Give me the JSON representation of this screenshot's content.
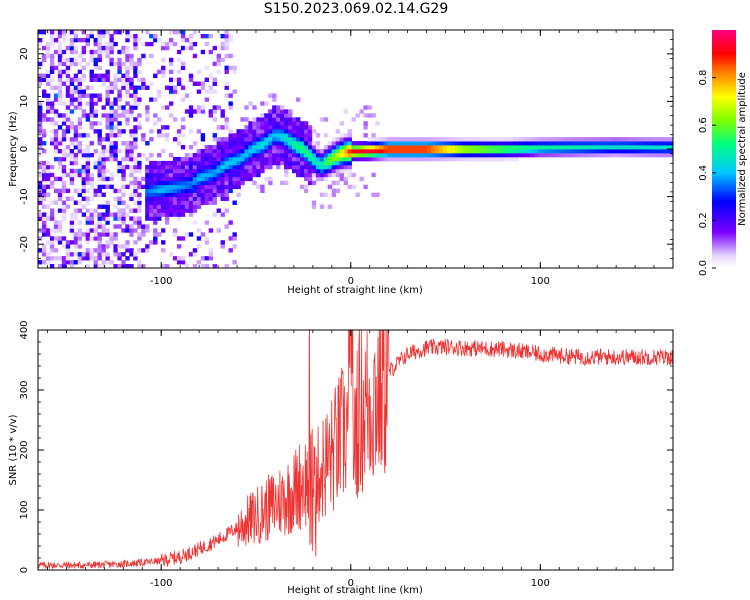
{
  "title": "S150.2023.069.02.14.G29",
  "colors": {
    "snr_line": "#ee3333",
    "axis": "#000000",
    "background": "#ffffff"
  },
  "chart_data": [
    {
      "type": "heatmap",
      "name": "spectrogram",
      "xlabel": "Height of straight line (km)",
      "ylabel": "Frequency (Hz)",
      "xlim": [
        -165,
        170
      ],
      "ylim": [
        -25,
        25
      ],
      "xticks": [
        -100,
        0,
        100
      ],
      "xtick_labels": [
        "-100",
        "0",
        "100"
      ],
      "yticks": [
        -20,
        -10,
        0,
        10,
        20
      ],
      "ytick_labels": [
        "-20",
        "-10",
        "0",
        "10",
        "20"
      ],
      "colorbar": {
        "label": "Normalized spectral amplitude",
        "range": [
          0,
          1
        ],
        "ticks": [
          0.0,
          0.2,
          0.4,
          0.6,
          0.8
        ],
        "tick_labels": [
          "0.0",
          "0.2",
          "0.4",
          "0.6",
          "0.8"
        ]
      },
      "ridge": {
        "x": [
          -108,
          -100,
          -92,
          -85,
          -80,
          -72,
          -65,
          -58,
          -52,
          -46,
          -40,
          -35,
          -30,
          -25,
          -20,
          -16,
          -12,
          -8,
          -4,
          0,
          10,
          20,
          40,
          60,
          80,
          100,
          120,
          140,
          160,
          170
        ],
        "y": [
          -9,
          -8.5,
          -8,
          -7.5,
          -6,
          -5,
          -3,
          -2,
          0,
          1,
          3,
          2.5,
          1,
          0,
          -2,
          -3.5,
          -2.5,
          -1.5,
          -0.8,
          -0.5,
          -0.3,
          0,
          0,
          0,
          0,
          0.3,
          0.4,
          0.5,
          0.4,
          0.4
        ],
        "amplitude": [
          0.35,
          0.4,
          0.38,
          0.35,
          0.4,
          0.38,
          0.42,
          0.4,
          0.42,
          0.45,
          0.4,
          0.45,
          0.5,
          0.55,
          0.5,
          0.45,
          0.6,
          0.65,
          0.75,
          0.9,
          0.95,
          0.95,
          0.95,
          0.7,
          0.6,
          0.5,
          0.48,
          0.45,
          0.45,
          0.45
        ]
      }
    },
    {
      "type": "line",
      "name": "snr",
      "xlabel": "Height of straight line (km)",
      "ylabel": "SNR (10 * v/v)",
      "xlim": [
        -165,
        170
      ],
      "ylim": [
        0,
        400
      ],
      "xticks": [
        -100,
        0,
        100
      ],
      "xtick_labels": [
        "-100",
        "0",
        "100"
      ],
      "yticks": [
        0,
        100,
        200,
        300,
        400
      ],
      "ytick_labels": [
        "0",
        "100",
        "200",
        "300",
        "400"
      ],
      "series": [
        {
          "name": "SNR",
          "x": [
            -165,
            -140,
            -120,
            -100,
            -90,
            -80,
            -70,
            -60,
            -50,
            -40,
            -30,
            -25,
            -20,
            -15,
            -10,
            -5,
            0,
            5,
            10,
            15,
            20,
            30,
            40,
            50,
            60,
            80,
            100,
            120,
            140,
            170
          ],
          "values": [
            8,
            8,
            10,
            15,
            22,
            35,
            50,
            70,
            90,
            110,
            130,
            150,
            140,
            170,
            190,
            220,
            250,
            265,
            280,
            300,
            330,
            360,
            370,
            372,
            370,
            368,
            360,
            355,
            355,
            355
          ]
        }
      ]
    }
  ]
}
